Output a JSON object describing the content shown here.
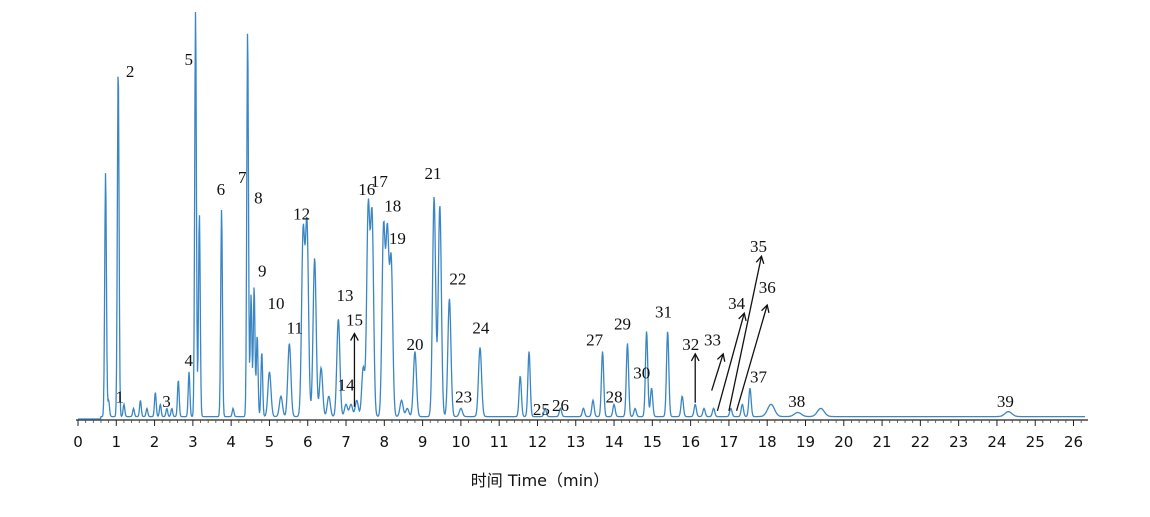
{
  "chart_data": {
    "type": "line",
    "title": "",
    "xlabel": "时间 Time（min）",
    "ylabel": "",
    "xlim": [
      0,
      26.3
    ],
    "xticks": [
      0,
      1,
      2,
      3,
      4,
      5,
      6,
      7,
      8,
      9,
      10,
      11,
      12,
      13,
      14,
      15,
      16,
      17,
      18,
      19,
      20,
      21,
      22,
      23,
      24,
      25,
      26
    ],
    "ylim": [
      0,
      100
    ],
    "grid": false,
    "line_color": "#3a86c4",
    "series": [
      {
        "peaks": [
          [
            0.72,
            60
          ],
          [
            0.8,
            4
          ],
          [
            1.05,
            86
          ],
          [
            1.2,
            3
          ],
          [
            1.45,
            2
          ],
          [
            1.63,
            4
          ],
          [
            1.8,
            2
          ],
          [
            2.02,
            6
          ],
          [
            2.15,
            3
          ],
          [
            2.32,
            2
          ],
          [
            2.45,
            2
          ],
          [
            2.62,
            9
          ],
          [
            2.9,
            11
          ],
          [
            3.07,
            100
          ],
          [
            3.17,
            50
          ],
          [
            3.75,
            51
          ],
          [
            4.05,
            2
          ],
          [
            4.43,
            95
          ],
          [
            4.52,
            30
          ],
          [
            4.6,
            32
          ],
          [
            4.68,
            20
          ],
          [
            4.8,
            16
          ],
          [
            5.0,
            11
          ],
          [
            5.3,
            5
          ],
          [
            5.52,
            18
          ],
          [
            5.88,
            45
          ],
          [
            5.98,
            47
          ],
          [
            6.18,
            39
          ],
          [
            6.35,
            12
          ],
          [
            6.55,
            5
          ],
          [
            6.8,
            24
          ],
          [
            7.0,
            3
          ],
          [
            7.13,
            3
          ],
          [
            7.28,
            4
          ],
          [
            7.45,
            12
          ],
          [
            7.58,
            51
          ],
          [
            7.68,
            49
          ],
          [
            7.98,
            46
          ],
          [
            8.08,
            44
          ],
          [
            8.18,
            38
          ],
          [
            8.45,
            4
          ],
          [
            8.6,
            2
          ],
          [
            8.8,
            16
          ],
          [
            9.3,
            54
          ],
          [
            9.45,
            52
          ],
          [
            9.7,
            29
          ],
          [
            10.0,
            2
          ],
          [
            10.5,
            17
          ],
          [
            11.55,
            10
          ],
          [
            11.78,
            16
          ],
          [
            12.2,
            2
          ],
          [
            12.6,
            2
          ],
          [
            13.2,
            2
          ],
          [
            13.45,
            4
          ],
          [
            13.7,
            16
          ],
          [
            14.0,
            3
          ],
          [
            14.35,
            18
          ],
          [
            14.55,
            2
          ],
          [
            14.85,
            21
          ],
          [
            14.98,
            7
          ],
          [
            15.4,
            21
          ],
          [
            15.78,
            5
          ],
          [
            16.12,
            3
          ],
          [
            16.35,
            2
          ],
          [
            16.6,
            2
          ],
          [
            17.05,
            2
          ],
          [
            17.35,
            3
          ],
          [
            17.55,
            7
          ],
          [
            18.1,
            3
          ],
          [
            18.8,
            1
          ],
          [
            19.4,
            2
          ],
          [
            24.3,
            1.2
          ]
        ]
      }
    ],
    "annotations": [
      {
        "text": "1",
        "x": 0.98,
        "y": 4
      },
      {
        "text": "2",
        "x": 1.25,
        "y": 84
      },
      {
        "text": "3",
        "x": 2.2,
        "y": 3
      },
      {
        "text": "4",
        "x": 2.78,
        "y": 13
      },
      {
        "text": "5",
        "x": 2.78,
        "y": 87
      },
      {
        "text": "6",
        "x": 3.62,
        "y": 55
      },
      {
        "text": "7",
        "x": 4.18,
        "y": 58
      },
      {
        "text": "8",
        "x": 4.6,
        "y": 53
      },
      {
        "text": "9",
        "x": 4.7,
        "y": 35
      },
      {
        "text": "10",
        "x": 4.95,
        "y": 27
      },
      {
        "text": "11",
        "x": 5.45,
        "y": 21
      },
      {
        "text": "12",
        "x": 5.62,
        "y": 49
      },
      {
        "text": "13",
        "x": 6.75,
        "y": 29
      },
      {
        "text": "14",
        "x": 6.78,
        "y": 7
      },
      {
        "text": "15",
        "x": 7.0,
        "y": 23
      },
      {
        "text": "16",
        "x": 7.32,
        "y": 55
      },
      {
        "text": "17",
        "x": 7.65,
        "y": 57
      },
      {
        "text": "18",
        "x": 8.0,
        "y": 51
      },
      {
        "text": "19",
        "x": 8.12,
        "y": 43
      },
      {
        "text": "20",
        "x": 8.58,
        "y": 17
      },
      {
        "text": "21",
        "x": 9.05,
        "y": 59
      },
      {
        "text": "22",
        "x": 9.7,
        "y": 33
      },
      {
        "text": "23",
        "x": 9.85,
        "y": 4
      },
      {
        "text": "24",
        "x": 10.3,
        "y": 21
      },
      {
        "text": "25",
        "x": 11.88,
        "y": 1
      },
      {
        "text": "26",
        "x": 12.38,
        "y": 2
      },
      {
        "text": "27",
        "x": 13.27,
        "y": 18
      },
      {
        "text": "28",
        "x": 13.78,
        "y": 4
      },
      {
        "text": "29",
        "x": 14.0,
        "y": 22
      },
      {
        "text": "30",
        "x": 14.5,
        "y": 10
      },
      {
        "text": "31",
        "x": 15.07,
        "y": 25
      },
      {
        "text": "32",
        "x": 15.78,
        "y": 17
      },
      {
        "text": "33",
        "x": 16.35,
        "y": 18
      },
      {
        "text": "34",
        "x": 16.98,
        "y": 27
      },
      {
        "text": "35",
        "x": 17.55,
        "y": 41
      },
      {
        "text": "36",
        "x": 17.78,
        "y": 31
      },
      {
        "text": "37",
        "x": 17.55,
        "y": 9
      },
      {
        "text": "38",
        "x": 18.55,
        "y": 3
      },
      {
        "text": "39",
        "x": 24.0,
        "y": 3
      }
    ],
    "arrows": [
      {
        "x0": 7.22,
        "y0": 3,
        "x1": 7.22,
        "y1": 21
      },
      {
        "x0": 16.12,
        "y0": 4,
        "x1": 16.12,
        "y1": 16
      },
      {
        "x0": 16.55,
        "y0": 7,
        "x1": 16.85,
        "y1": 16
      },
      {
        "x0": 16.7,
        "y0": 2,
        "x1": 17.4,
        "y1": 26
      },
      {
        "x0": 17.0,
        "y0": 2,
        "x1": 17.85,
        "y1": 40
      },
      {
        "x0": 17.2,
        "y0": 2,
        "x1": 18.0,
        "y1": 28
      }
    ]
  }
}
